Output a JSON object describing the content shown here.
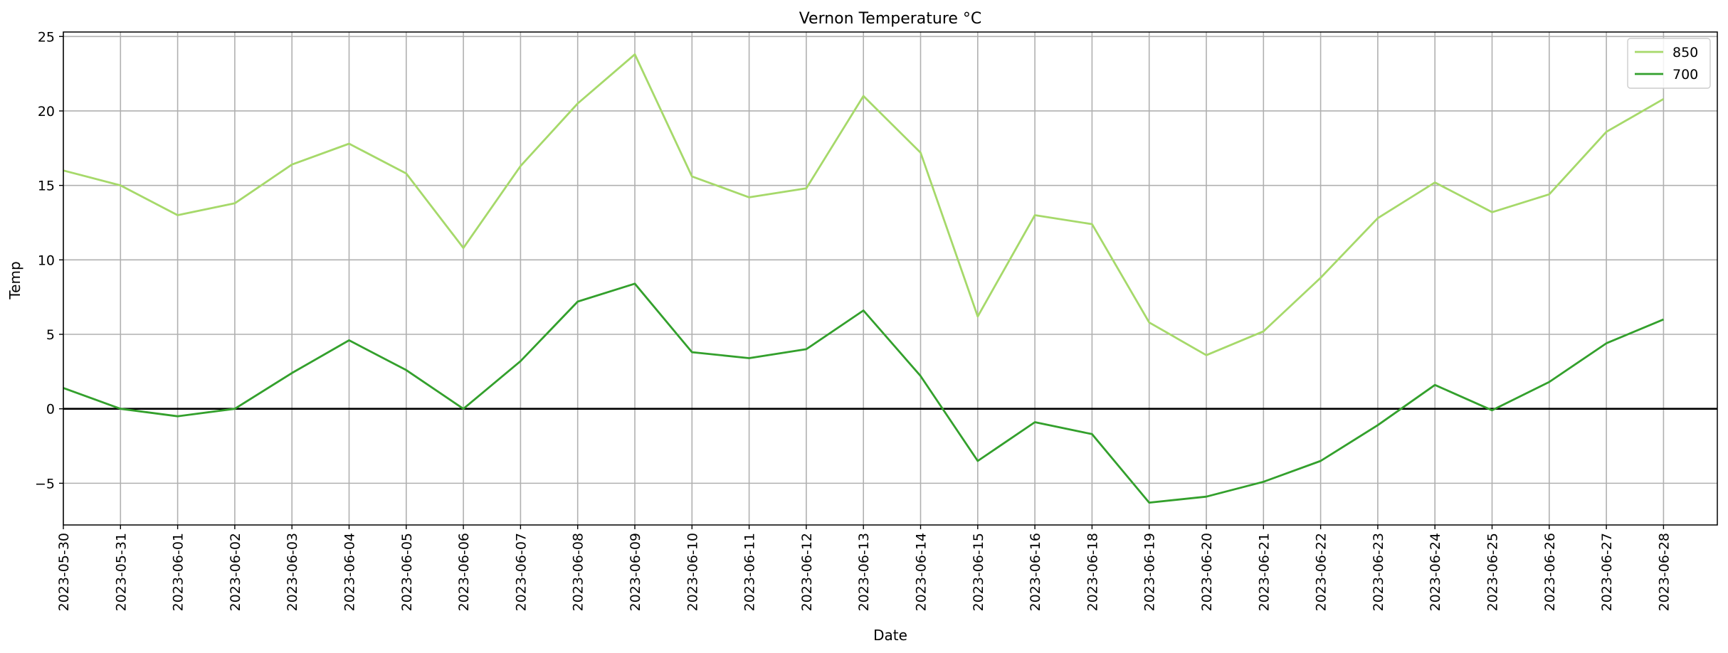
{
  "chart_data": {
    "type": "line",
    "title": "Vernon Temperature °C",
    "xlabel": "Date",
    "ylabel": "Temp",
    "categories": [
      "2023-05-30",
      "2023-05-31",
      "2023-06-01",
      "2023-06-02",
      "2023-06-03",
      "2023-06-04",
      "2023-06-05",
      "2023-06-06",
      "2023-06-07",
      "2023-06-08",
      "2023-06-09",
      "2023-06-10",
      "2023-06-11",
      "2023-06-12",
      "2023-06-13",
      "2023-06-14",
      "2023-06-15",
      "2023-06-16",
      "2023-06-18",
      "2023-06-19",
      "2023-06-20",
      "2023-06-21",
      "2023-06-22",
      "2023-06-23",
      "2023-06-24",
      "2023-06-25",
      "2023-06-26",
      "2023-06-27",
      "2023-06-28"
    ],
    "series": [
      {
        "name": "850",
        "color": "#a6d96a",
        "values": [
          16.0,
          15.0,
          13.0,
          13.8,
          16.4,
          17.8,
          15.8,
          10.8,
          16.3,
          20.5,
          23.8,
          15.6,
          14.2,
          14.8,
          21.0,
          17.2,
          6.2,
          13.0,
          12.4,
          5.8,
          3.6,
          5.2,
          8.8,
          12.8,
          15.2,
          13.2,
          14.4,
          18.6,
          20.8
        ]
      },
      {
        "name": "700",
        "color": "#33a02c",
        "values": [
          1.4,
          0.0,
          -0.5,
          0.0,
          2.4,
          4.6,
          2.6,
          0.0,
          3.2,
          7.2,
          8.4,
          3.8,
          3.4,
          4.0,
          6.6,
          2.2,
          -3.5,
          -0.9,
          -1.7,
          -6.3,
          -5.9,
          -4.9,
          -3.5,
          -1.1,
          1.6,
          -0.1,
          1.8,
          4.4,
          6.0
        ]
      }
    ],
    "yticks": [
      25,
      20,
      15,
      10,
      5,
      0,
      -5
    ],
    "yticklabels": [
      "25",
      "20",
      "15",
      "10",
      "5",
      "0",
      "−5"
    ],
    "ylim": [
      -7.8,
      25.3
    ],
    "reference_line": {
      "y": 0,
      "color": "#000000"
    },
    "grid": true,
    "legend_position": "top-right"
  }
}
